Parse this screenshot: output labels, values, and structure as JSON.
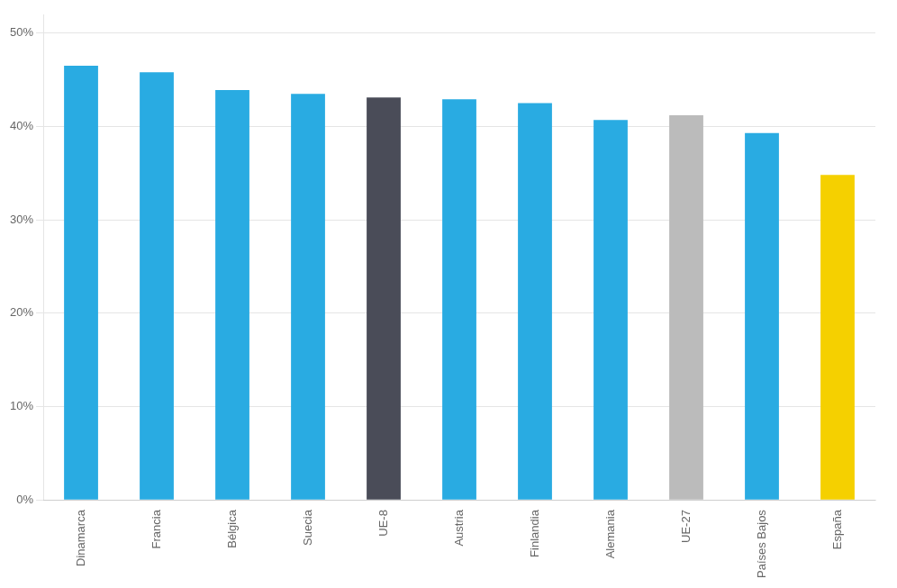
{
  "chart_data": {
    "type": "bar",
    "categories": [
      "Dinamarca",
      "Francia",
      "Bélgica",
      "Suecia",
      "UE-8",
      "Austria",
      "Finlandia",
      "Alemania",
      "UE-27",
      "Países Bajos",
      "España"
    ],
    "values": [
      46.5,
      45.8,
      43.9,
      43.5,
      43.1,
      42.9,
      42.5,
      40.7,
      41.2,
      39.3,
      34.8
    ],
    "colors": [
      "#29ABE2",
      "#29ABE2",
      "#29ABE2",
      "#29ABE2",
      "#4A4C58",
      "#29ABE2",
      "#29ABE2",
      "#29ABE2",
      "#BBBBBB",
      "#29ABE2",
      "#F5D000"
    ],
    "ylim": [
      0,
      52
    ],
    "yticks": [
      {
        "value": 0,
        "label": "0%"
      },
      {
        "value": 10,
        "label": "10%"
      },
      {
        "value": 20,
        "label": "20%"
      },
      {
        "value": 30,
        "label": "30%"
      },
      {
        "value": 40,
        "label": "40%"
      },
      {
        "value": 50,
        "label": "50%"
      }
    ],
    "grid": true
  }
}
